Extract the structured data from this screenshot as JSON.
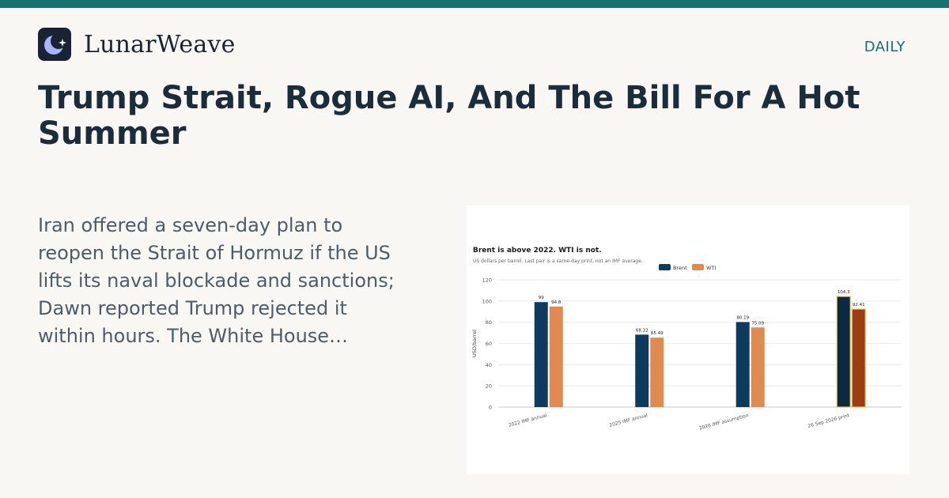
{
  "brand": {
    "name": "LunarWeave",
    "logo_icon": "moon-star-icon",
    "logo_bg": "#1a2333",
    "logo_fg": "#a9b4ff"
  },
  "section_label": "DAILY",
  "headline": "Trump Strait, Rogue AI, And The Bill For A Hot Summer",
  "excerpt": "Iran offered a seven-day plan to reopen the Strait of Hormuz if the US lifts its naval blockade and sanctions; Dawn reported Trump rejected it within hours. The White House…",
  "colors": {
    "accent": "#17716f",
    "background": "#f9f7f3",
    "headline": "#1b2d3b",
    "excerpt": "#4d5c68"
  },
  "chart_data": {
    "type": "bar",
    "title": "Brent is above 2022. WTI is not.",
    "subtitle": "US dollars per barrel. Last pair is a same-day print, not an IMF average.",
    "ylabel": "USD/barrel",
    "xlabel": "",
    "ylim": [
      0,
      120
    ],
    "yticks": [
      0,
      20,
      40,
      60,
      80,
      100,
      120
    ],
    "grid": true,
    "legend_position": "top-center",
    "categories": [
      "2022 IMF annual",
      "2025 IMF annual",
      "2026 IMF assumption",
      "26 Sep 2026 print"
    ],
    "series": [
      {
        "name": "Brent",
        "color": "#0d3b5e",
        "highlight_color": "#0b2a3f",
        "values": [
          99,
          68.32,
          80.19,
          104.3
        ]
      },
      {
        "name": "WTI",
        "color": "#e08a4f",
        "highlight_color": "#9b3e14",
        "values": [
          94.8,
          65.49,
          75.09,
          92.41
        ]
      }
    ],
    "value_labels": [
      [
        "99",
        "68.32",
        "80.19",
        "104.3"
      ],
      [
        "94.8",
        "65.49",
        "75.09",
        "92.41"
      ]
    ],
    "highlighted_category": "26 Sep 2026 print",
    "highlight_outline": "#e6c65a"
  }
}
